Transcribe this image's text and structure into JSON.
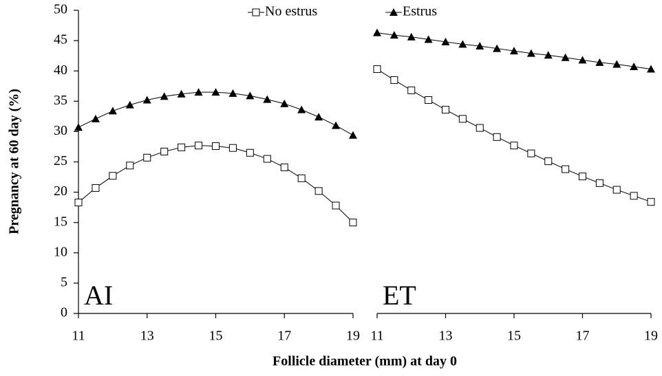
{
  "chart_data": [
    {
      "type": "line",
      "label": "AI",
      "ylabel": "Pregnancy at 60 day (%)",
      "xlabel": "Follicle diameter (mm) at day 0",
      "x": [
        11,
        11.5,
        12,
        12.5,
        13,
        13.5,
        14,
        14.5,
        15,
        15.5,
        16,
        16.5,
        17,
        17.5,
        18,
        18.5,
        19
      ],
      "series": [
        {
          "name": "No estrus",
          "color": "#000000",
          "marker": "square",
          "values": [
            18.3,
            20.7,
            22.7,
            24.4,
            25.7,
            26.7,
            27.4,
            27.7,
            27.6,
            27.3,
            26.5,
            25.5,
            24.1,
            22.3,
            20.2,
            17.8,
            15.0
          ]
        },
        {
          "name": "Estrus",
          "color": "#000000",
          "marker": "triangle",
          "values": [
            30.7,
            32.1,
            33.4,
            34.4,
            35.2,
            35.8,
            36.2,
            36.5,
            36.5,
            36.3,
            35.9,
            35.3,
            34.6,
            33.6,
            32.4,
            31.0,
            29.4
          ]
        }
      ],
      "xlim": [
        11,
        19
      ],
      "xticks": [
        11,
        13,
        15,
        17,
        19
      ],
      "ylim": [
        0,
        50
      ],
      "yticks": [
        0,
        5,
        10,
        15,
        20,
        25,
        30,
        35,
        40,
        45,
        50
      ]
    },
    {
      "type": "line",
      "label": "ET",
      "x": [
        11,
        11.5,
        12,
        12.5,
        13,
        13.5,
        14,
        14.5,
        15,
        15.5,
        16,
        16.5,
        17,
        17.5,
        18,
        18.5,
        19
      ],
      "series": [
        {
          "name": "No estrus",
          "color": "#000000",
          "marker": "square",
          "values": [
            40.3,
            38.5,
            36.8,
            35.2,
            33.6,
            32.1,
            30.6,
            29.1,
            27.7,
            26.4,
            25.1,
            23.8,
            22.6,
            21.5,
            20.4,
            19.4,
            18.4
          ]
        },
        {
          "name": "Estrus",
          "color": "#000000",
          "marker": "triangle",
          "values": [
            46.3,
            45.9,
            45.6,
            45.2,
            44.8,
            44.4,
            44.1,
            43.7,
            43.3,
            42.9,
            42.6,
            42.2,
            41.8,
            41.4,
            41.1,
            40.7,
            40.3
          ]
        }
      ],
      "xlim": [
        11,
        19
      ],
      "xticks": [
        11,
        13,
        15,
        17,
        19
      ],
      "ylim": [
        0,
        50
      ]
    }
  ]
}
